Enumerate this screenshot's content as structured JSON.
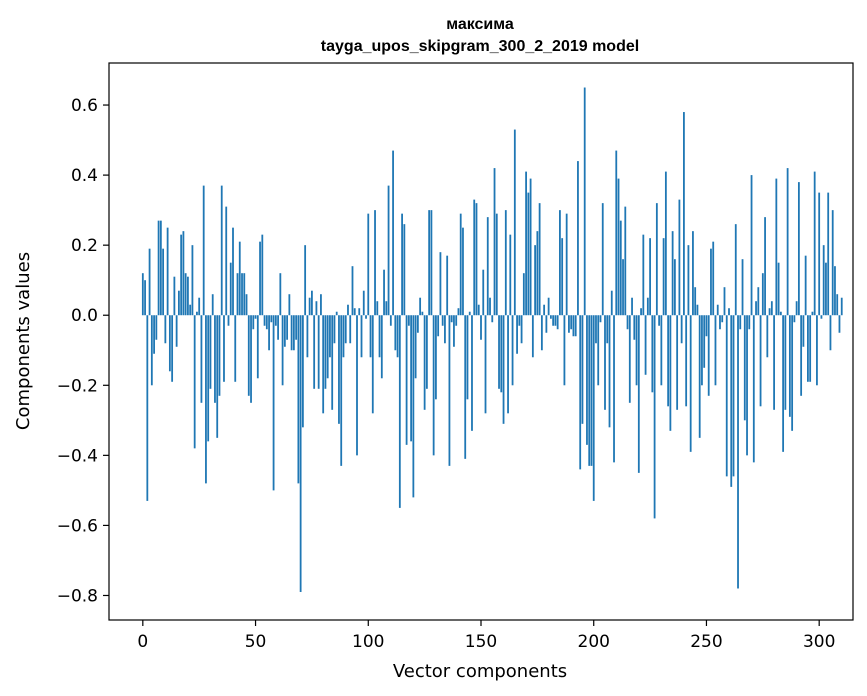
{
  "chart_data": {
    "type": "bar",
    "title_line1": "максима",
    "title_line2": "tayga_upos_skipgram_300_2_2019 model",
    "xlabel": "Vector components",
    "ylabel": "Components values",
    "xlim": [
      -15,
      315
    ],
    "ylim": [
      -0.87,
      0.72
    ],
    "xticks": [
      0,
      50,
      100,
      150,
      200,
      250,
      300
    ],
    "xtick_labels": [
      "0",
      "50",
      "100",
      "150",
      "200",
      "250",
      "300"
    ],
    "yticks": [
      -0.8,
      -0.6,
      -0.4,
      -0.2,
      0.0,
      0.2,
      0.4,
      0.6
    ],
    "ytick_labels": [
      "−0.8",
      "−0.6",
      "−0.4",
      "−0.2",
      "0.0",
      "0.2",
      "0.4",
      "0.6"
    ],
    "bar_color": "#1f77b4",
    "values": [
      0.12,
      0.1,
      -0.53,
      0.19,
      -0.2,
      -0.11,
      -0.07,
      0.27,
      0.27,
      0.19,
      -0.08,
      0.25,
      -0.16,
      -0.19,
      0.11,
      -0.09,
      0.07,
      0.23,
      0.24,
      0.12,
      0.11,
      0.03,
      0.2,
      -0.38,
      0.01,
      0.05,
      -0.25,
      0.37,
      -0.48,
      -0.36,
      -0.21,
      0.06,
      -0.25,
      -0.35,
      -0.23,
      0.37,
      -0.19,
      0.31,
      -0.03,
      0.15,
      0.25,
      -0.19,
      0.12,
      0.21,
      0.12,
      0.12,
      0.06,
      -0.23,
      -0.25,
      -0.04,
      -0.01,
      -0.18,
      0.21,
      0.23,
      -0.03,
      -0.04,
      -0.1,
      -0.02,
      -0.5,
      -0.03,
      -0.07,
      0.12,
      -0.2,
      -0.09,
      -0.07,
      0.06,
      -0.1,
      -0.1,
      -0.07,
      -0.48,
      -0.79,
      -0.32,
      0.2,
      -0.12,
      0.05,
      0.07,
      -0.21,
      0.04,
      -0.21,
      0.06,
      -0.28,
      -0.21,
      -0.18,
      -0.12,
      -0.27,
      -0.08,
      0.01,
      -0.31,
      -0.43,
      -0.12,
      -0.08,
      0.03,
      -0.08,
      0.14,
      0.02,
      -0.4,
      0.02,
      -0.12,
      0.07,
      -0.01,
      0.29,
      -0.12,
      -0.28,
      0.3,
      0.04,
      -0.12,
      -0.18,
      0.13,
      0.04,
      0.37,
      -0.03,
      0.47,
      -0.1,
      -0.12,
      -0.55,
      0.29,
      0.26,
      -0.37,
      -0.03,
      -0.36,
      -0.52,
      -0.18,
      -0.05,
      0.05,
      0.01,
      -0.27,
      -0.21,
      0.3,
      0.3,
      -0.4,
      -0.24,
      -0.06,
      0.18,
      -0.03,
      -0.08,
      0.17,
      -0.43,
      -0.02,
      -0.09,
      -0.03,
      0.02,
      0.29,
      0.25,
      -0.41,
      -0.24,
      0.01,
      -0.33,
      0.33,
      0.32,
      0.03,
      -0.07,
      0.13,
      -0.28,
      0.28,
      0.05,
      -0.02,
      0.42,
      0.29,
      -0.21,
      -0.22,
      -0.31,
      0.3,
      -0.28,
      0.23,
      -0.2,
      0.53,
      -0.11,
      -0.03,
      -0.08,
      0.12,
      0.41,
      0.35,
      0.39,
      -0.12,
      0.2,
      0.24,
      0.32,
      -0.1,
      0.03,
      -0.05,
      0.05,
      -0.01,
      -0.03,
      -0.03,
      -0.04,
      0.3,
      0.22,
      -0.2,
      0.29,
      -0.05,
      -0.04,
      -0.06,
      -0.06,
      0.44,
      -0.44,
      -0.31,
      0.65,
      -0.37,
      -0.43,
      -0.43,
      -0.53,
      -0.08,
      -0.2,
      -0.02,
      0.32,
      -0.27,
      -0.08,
      -0.32,
      0.07,
      -0.42,
      0.47,
      0.39,
      0.27,
      0.16,
      0.31,
      -0.04,
      -0.25,
      0.05,
      -0.07,
      -0.2,
      -0.45,
      0.02,
      0.23,
      -0.17,
      0.05,
      0.22,
      -0.22,
      -0.58,
      0.32,
      -0.03,
      -0.2,
      0.22,
      0.41,
      -0.26,
      -0.33,
      0.24,
      0.16,
      -0.27,
      0.33,
      -0.08,
      0.58,
      -0.26,
      0.2,
      -0.39,
      0.24,
      0.08,
      0.03,
      -0.35,
      -0.2,
      -0.15,
      -0.06,
      -0.23,
      0.19,
      0.21,
      -0.2,
      0.03,
      -0.04,
      -0.02,
      0.08,
      -0.46,
      0.02,
      -0.49,
      -0.46,
      0.26,
      -0.78,
      -0.04,
      0.16,
      -0.3,
      -0.4,
      -0.04,
      0.4,
      -0.42,
      0.04,
      0.08,
      -0.26,
      0.12,
      0.28,
      -0.12,
      0.02,
      0.04,
      -0.27,
      0.39,
      0.15,
      0.01,
      -0.39,
      -0.27,
      0.42,
      -0.29,
      -0.33,
      -0.02,
      0.04,
      0.38,
      -0.23,
      -0.09,
      0.17,
      -0.19,
      -0.19,
      0.01,
      0.41,
      -0.2,
      0.35,
      -0.01,
      0.2,
      0.15,
      0.35,
      -0.1,
      0.3,
      0.14,
      0.06,
      -0.05,
      0.05
    ]
  }
}
